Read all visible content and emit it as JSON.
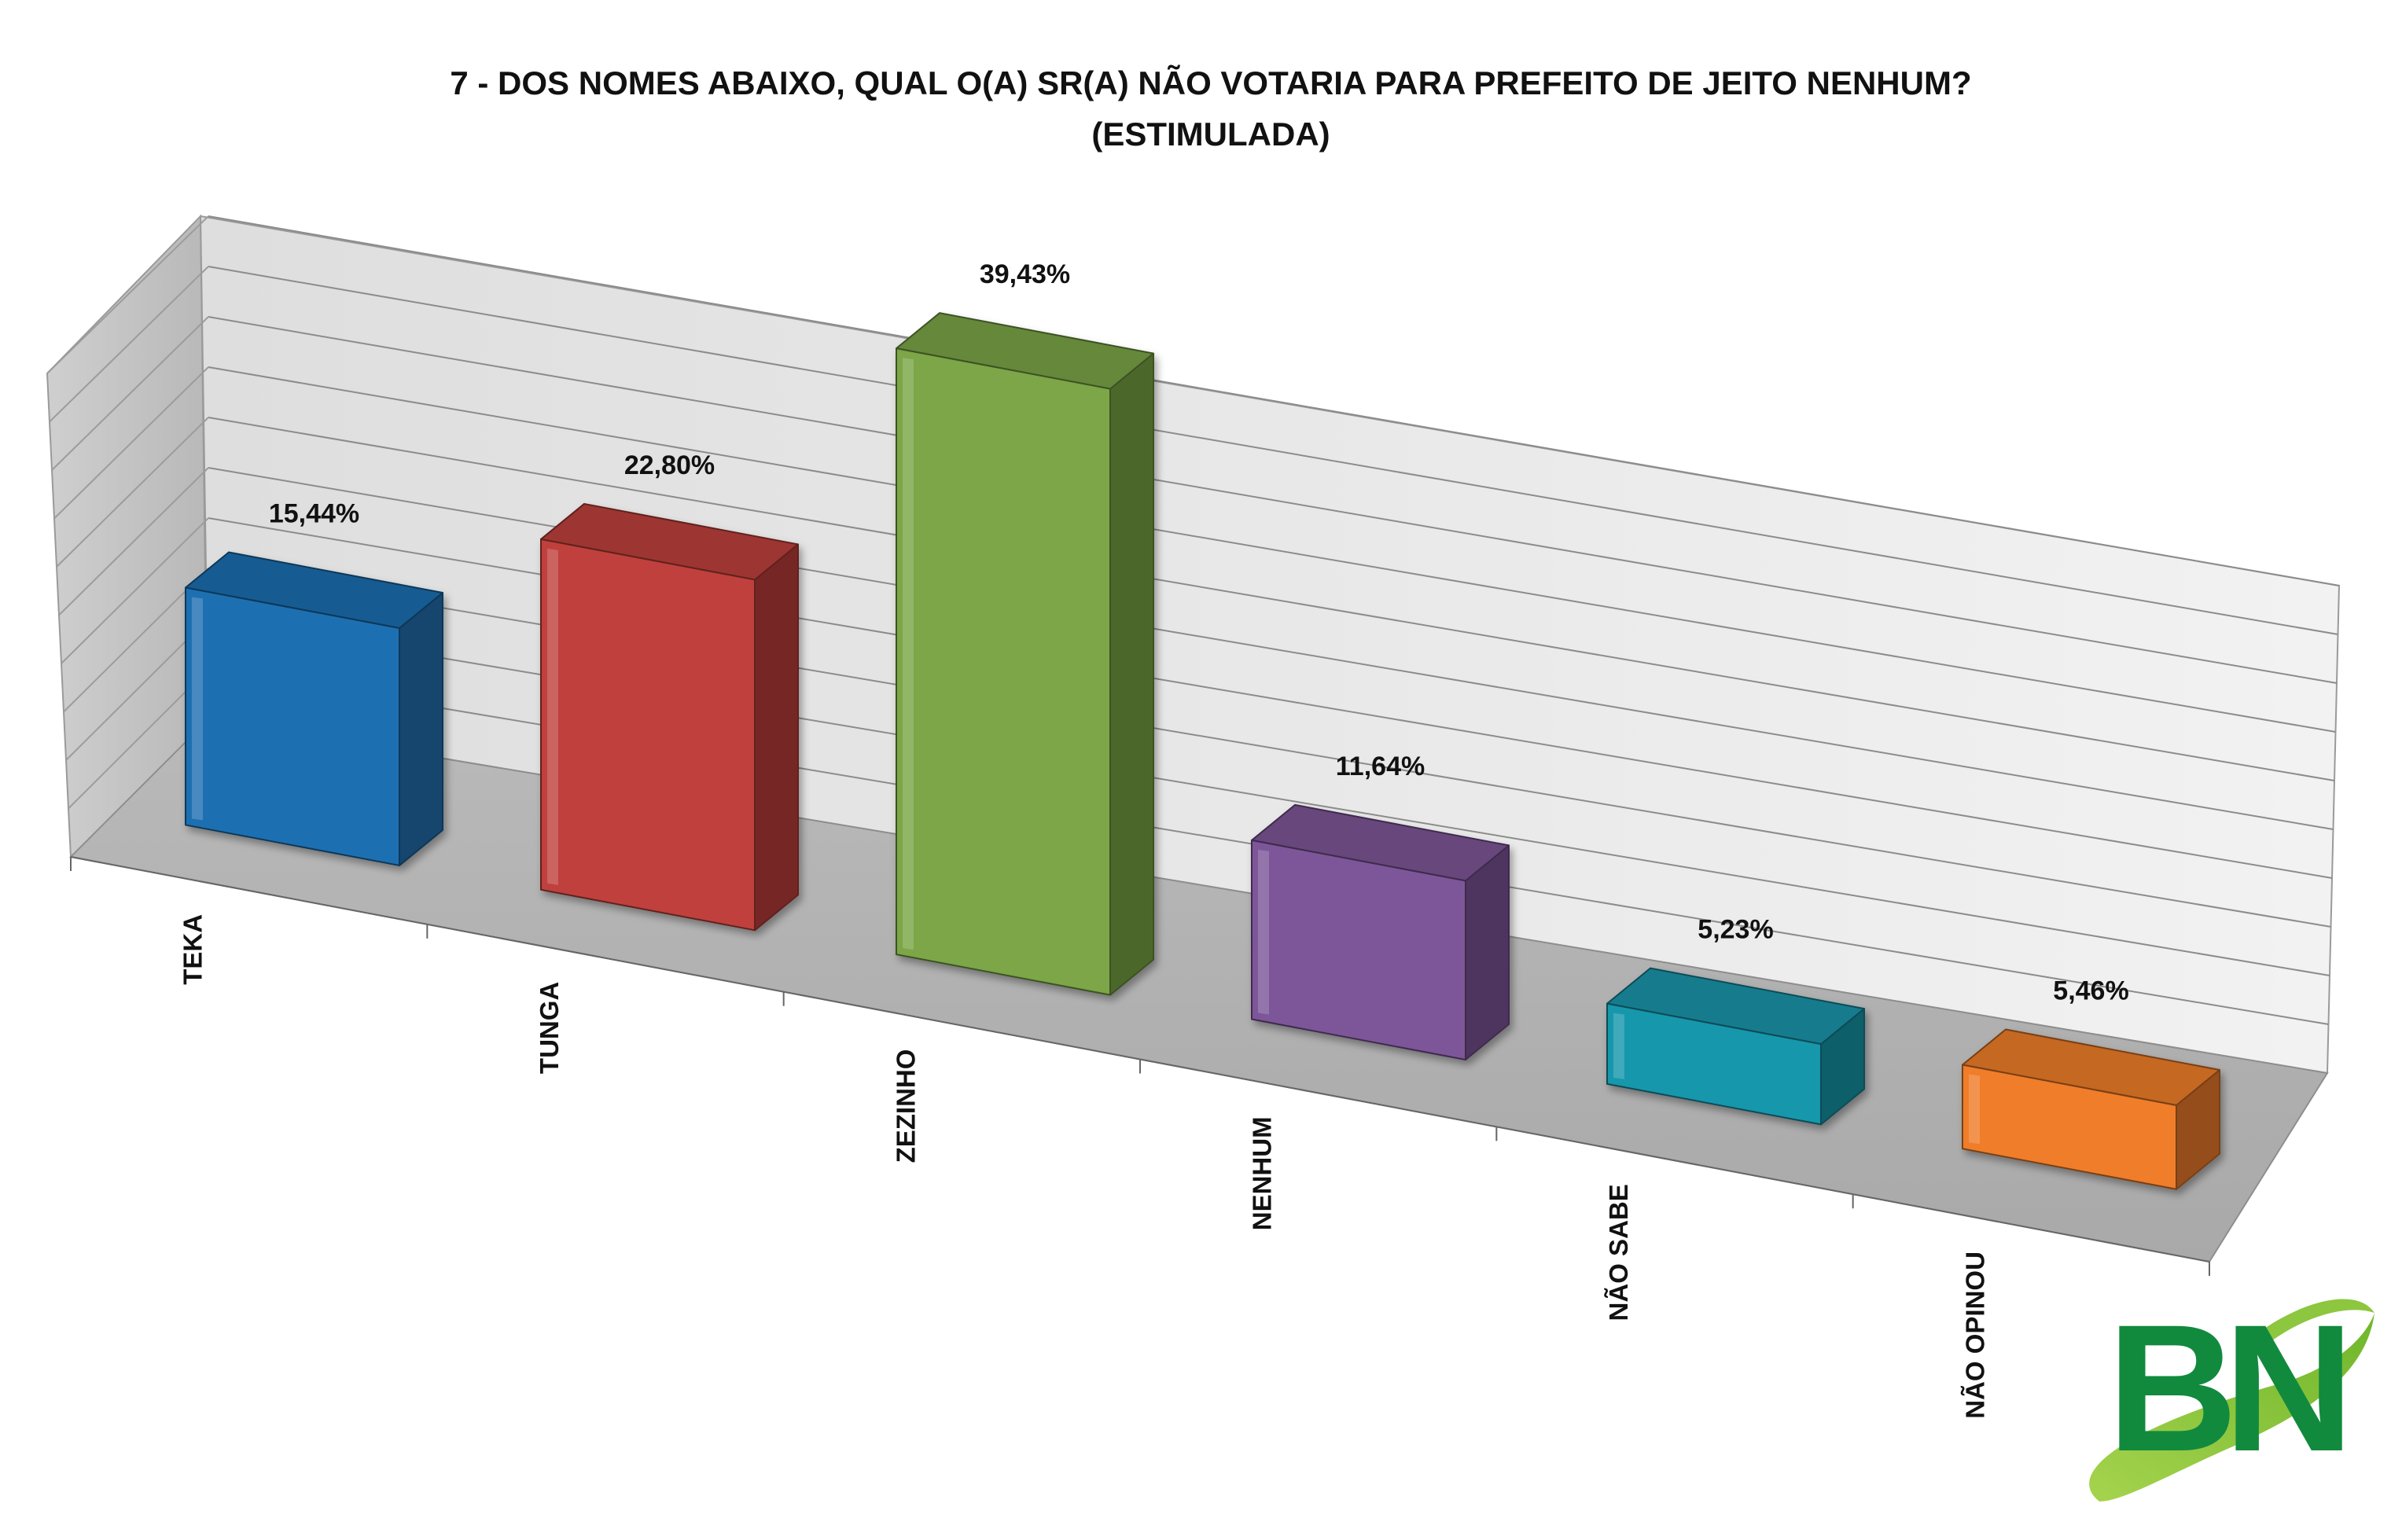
{
  "chart_data": {
    "type": "bar",
    "title": "7 -  DOS NOMES ABAIXO, QUAL O(A) SR(A) NÃO VOTARIA PARA PREFEITO DE JEITO NENHUM?",
    "subtitle": "(ESTIMULADA)",
    "categories": [
      "TEKA",
      "TUNGA",
      "ZEZINHO",
      "NENHUM",
      "NÃO SABE",
      "NÃO OPINOU"
    ],
    "values": [
      15.44,
      22.8,
      39.43,
      11.64,
      5.23,
      5.46
    ],
    "value_labels": [
      "15,44%",
      "22,80%",
      "39,43%",
      "11,64%",
      "5,23%",
      "5,46%"
    ],
    "colors": [
      "#1f6fb2",
      "#c0413d",
      "#7ba647",
      "#7d5799",
      "#1797ac",
      "#f07d2a"
    ],
    "ylim": [
      0,
      50
    ],
    "grid": true,
    "legend": "none",
    "style": "3d-column"
  },
  "logo": {
    "text": "BN",
    "colors": [
      "#118a3e",
      "#8dc63f"
    ]
  }
}
